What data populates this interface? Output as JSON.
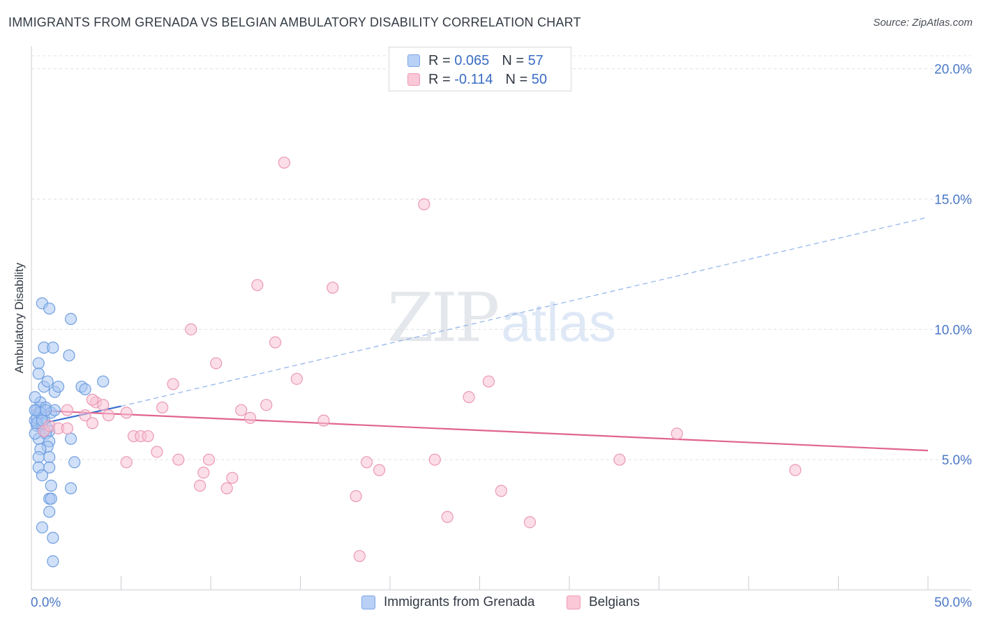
{
  "header": {
    "title": "IMMIGRANTS FROM GRENADA VS BELGIAN AMBULATORY DISABILITY CORRELATION CHART",
    "source": "Source: ZipAtlas.com"
  },
  "watermark": {
    "zip": "ZIP",
    "atlas": "atlas"
  },
  "legend": {
    "rows": [
      {
        "r_label": "R =",
        "r_value": "0.065",
        "n_label": "N =",
        "n_value": "57",
        "color": "#b8d0f5",
        "border": "#7ea6e6"
      },
      {
        "r_label": "R =",
        "r_value": "-0.114",
        "n_label": "N =",
        "n_value": "50",
        "color": "#fbc8d7",
        "border": "#f09ab5"
      }
    ]
  },
  "colors": {
    "blue_fill": "#a9c6f2",
    "blue_stroke": "#6f9ee0",
    "blue_line": "#3a6fd0",
    "pink_fill": "#f8c3d3",
    "pink_stroke": "#eb98b5",
    "pink_line": "#e0648f",
    "grid": "#dde0e5",
    "tick_text": "#4a78c8"
  },
  "chart_data": {
    "type": "scatter",
    "title": "IMMIGRANTS FROM GRENADA VS BELGIAN AMBULATORY DISABILITY CORRELATION CHART",
    "xlabel": "",
    "ylabel": "Ambulatory Disability",
    "xlim": [
      0,
      50
    ],
    "ylim": [
      0,
      20.5
    ],
    "x_tick_labels": [
      "0.0%",
      "50.0%"
    ],
    "y_ticks": [
      5,
      10,
      15,
      20
    ],
    "y_tick_labels": [
      "5.0%",
      "10.0%",
      "15.0%",
      "20.0%"
    ],
    "x_minor_ticks": [
      5,
      10,
      15,
      20,
      25,
      30,
      35,
      40,
      45,
      50
    ],
    "series": [
      {
        "name": "Immigrants from Grenada",
        "r": 0.065,
        "n": 57,
        "trend": {
          "x": [
            0,
            5.0
          ],
          "y": [
            6.3,
            7.05
          ],
          "dashed_extension_to": [
            50,
            14.3
          ]
        },
        "points": [
          [
            0.3,
            6.3
          ],
          [
            0.4,
            6.8
          ],
          [
            0.5,
            7.0
          ],
          [
            0.2,
            6.5
          ],
          [
            0.6,
            6.2
          ],
          [
            0.3,
            6.9
          ],
          [
            0.7,
            6.6
          ],
          [
            0.5,
            7.2
          ],
          [
            0.2,
            7.4
          ],
          [
            0.8,
            7.0
          ],
          [
            0.4,
            5.8
          ],
          [
            0.9,
            6.2
          ],
          [
            1.0,
            6.1
          ],
          [
            0.6,
            6.4
          ],
          [
            0.3,
            6.6
          ],
          [
            1.1,
            6.8
          ],
          [
            0.7,
            7.8
          ],
          [
            1.3,
            7.6
          ],
          [
            1.5,
            7.8
          ],
          [
            0.9,
            8.0
          ],
          [
            0.4,
            8.7
          ],
          [
            0.4,
            8.3
          ],
          [
            0.7,
            9.3
          ],
          [
            1.2,
            9.3
          ],
          [
            2.1,
            9.0
          ],
          [
            0.6,
            11.0
          ],
          [
            1.0,
            10.8
          ],
          [
            2.2,
            10.4
          ],
          [
            2.8,
            7.8
          ],
          [
            3.0,
            7.7
          ],
          [
            4.0,
            8.0
          ],
          [
            1.3,
            6.9
          ],
          [
            0.5,
            6.8
          ],
          [
            0.3,
            6.4
          ],
          [
            0.8,
            6.0
          ],
          [
            0.6,
            6.5
          ],
          [
            1.0,
            5.7
          ],
          [
            0.9,
            5.5
          ],
          [
            0.5,
            5.4
          ],
          [
            0.4,
            5.1
          ],
          [
            1.0,
            5.1
          ],
          [
            2.2,
            5.8
          ],
          [
            2.4,
            4.9
          ],
          [
            0.4,
            4.7
          ],
          [
            1.0,
            4.7
          ],
          [
            0.6,
            4.4
          ],
          [
            1.1,
            4.0
          ],
          [
            2.2,
            3.9
          ],
          [
            1.0,
            3.5
          ],
          [
            1.1,
            3.5
          ],
          [
            1.0,
            3.0
          ],
          [
            0.6,
            2.4
          ],
          [
            1.2,
            2.0
          ],
          [
            1.2,
            1.1
          ],
          [
            0.2,
            6.9
          ],
          [
            0.8,
            6.9
          ],
          [
            0.2,
            6.0
          ]
        ]
      },
      {
        "name": "Belgians",
        "r": -0.114,
        "n": 50,
        "trend": {
          "x": [
            0,
            50
          ],
          "y": [
            6.9,
            5.35
          ]
        },
        "points": [
          [
            0.7,
            6.1
          ],
          [
            1.0,
            6.3
          ],
          [
            1.5,
            6.2
          ],
          [
            2.0,
            6.9
          ],
          [
            3.0,
            6.7
          ],
          [
            3.4,
            6.4
          ],
          [
            3.6,
            7.2
          ],
          [
            4.0,
            7.1
          ],
          [
            4.3,
            6.7
          ],
          [
            5.3,
            6.8
          ],
          [
            5.7,
            5.9
          ],
          [
            6.1,
            5.9
          ],
          [
            6.5,
            5.9
          ],
          [
            7.0,
            5.3
          ],
          [
            7.3,
            7.0
          ],
          [
            7.9,
            7.9
          ],
          [
            8.2,
            5.0
          ],
          [
            8.9,
            10.0
          ],
          [
            9.4,
            4.0
          ],
          [
            9.6,
            4.5
          ],
          [
            9.9,
            5.0
          ],
          [
            10.3,
            8.7
          ],
          [
            10.9,
            3.9
          ],
          [
            11.2,
            4.3
          ],
          [
            11.7,
            6.9
          ],
          [
            12.2,
            6.6
          ],
          [
            12.6,
            11.7
          ],
          [
            13.1,
            7.1
          ],
          [
            13.6,
            9.5
          ],
          [
            14.1,
            16.4
          ],
          [
            14.8,
            8.1
          ],
          [
            16.3,
            6.5
          ],
          [
            16.8,
            11.6
          ],
          [
            18.1,
            3.6
          ],
          [
            18.3,
            1.3
          ],
          [
            18.7,
            4.9
          ],
          [
            19.4,
            4.6
          ],
          [
            21.9,
            14.8
          ],
          [
            22.5,
            5.0
          ],
          [
            23.2,
            2.8
          ],
          [
            24.4,
            7.4
          ],
          [
            25.5,
            8.0
          ],
          [
            26.2,
            3.8
          ],
          [
            27.8,
            2.6
          ],
          [
            5.3,
            4.9
          ],
          [
            32.8,
            5.0
          ],
          [
            36.0,
            6.0
          ],
          [
            42.6,
            4.6
          ],
          [
            3.4,
            7.3
          ],
          [
            2.0,
            6.2
          ]
        ]
      }
    ]
  },
  "bottom_legend": {
    "items": [
      {
        "label": "Immigrants from Grenada"
      },
      {
        "label": "Belgians"
      }
    ]
  }
}
